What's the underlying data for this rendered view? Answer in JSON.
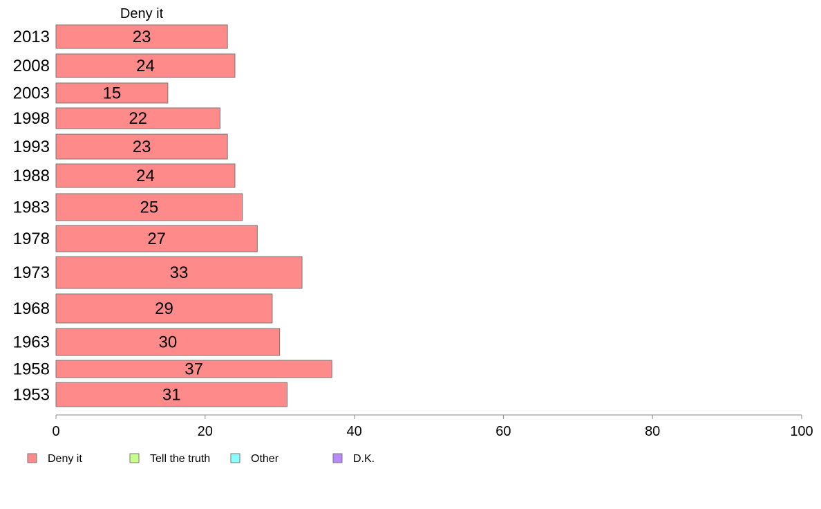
{
  "chart_data": {
    "type": "bar",
    "orientation": "horizontal",
    "panel_title": "Deny it",
    "categories": [
      "2013",
      "2008",
      "2003",
      "1998",
      "1993",
      "1988",
      "1983",
      "1978",
      "1973",
      "1968",
      "1963",
      "1958",
      "1953"
    ],
    "series": [
      {
        "name": "Deny it",
        "color": "#ff8a8a",
        "values": [
          23,
          24,
          15,
          22,
          23,
          24,
          25,
          27,
          33,
          29,
          30,
          37,
          31
        ],
        "display_labels": [
          "23",
          "24",
          "15",
          "22",
          "23",
          "24",
          "25",
          "27",
          "33",
          "29",
          "30",
          "37",
          "31"
        ]
      }
    ],
    "xlim": [
      0,
      100
    ],
    "xticks": [
      0,
      20,
      40,
      60,
      80,
      100
    ],
    "xtick_labels": [
      "0",
      "20",
      "40",
      "60",
      "80",
      "100"
    ],
    "grid": false,
    "legend_position": "bottom-left",
    "legend": [
      {
        "label": "Deny it",
        "color": "#ff8a8a"
      },
      {
        "label": "Tell the truth",
        "color": "#c8ff8a"
      },
      {
        "label": "Other",
        "color": "#8affff"
      },
      {
        "label": "D.K.",
        "color": "#b98aff"
      }
    ]
  }
}
